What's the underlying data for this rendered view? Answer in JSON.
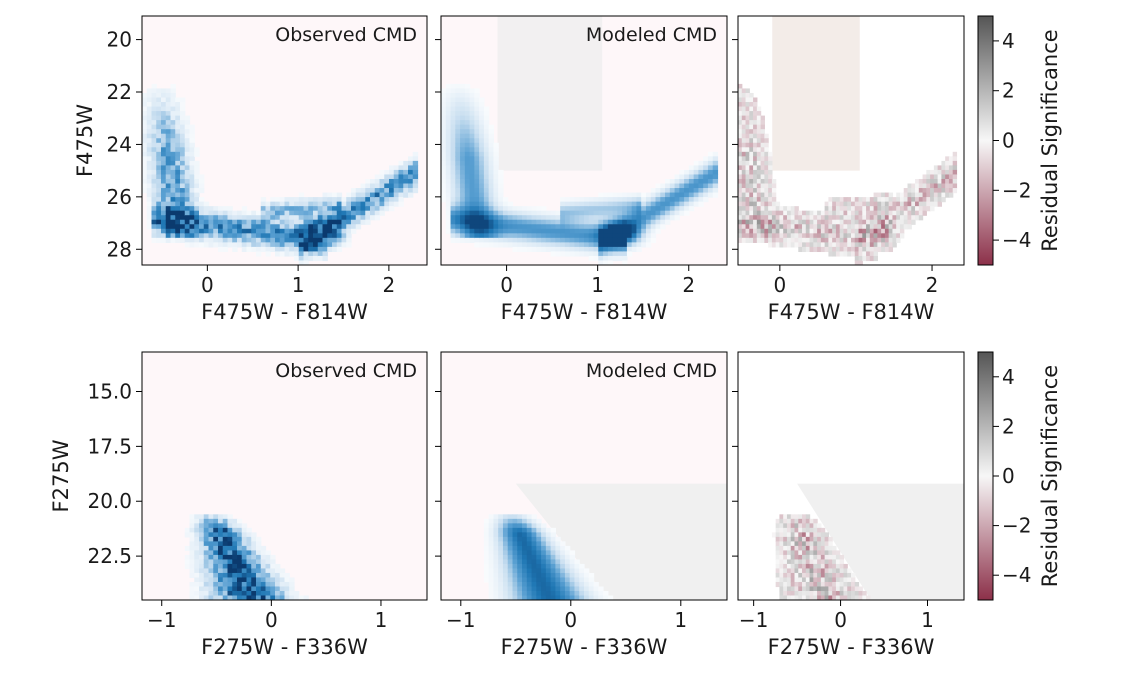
{
  "chart_data": [
    {
      "type": "heatmap",
      "row": "top",
      "panels": [
        {
          "title": "Observed CMD",
          "kind": "observed",
          "xlabel": "F475W - F814W",
          "xlim": [
            -0.72,
            2.42
          ],
          "xticks": [
            0,
            1,
            2
          ],
          "show_y": true
        },
        {
          "title": "Modeled CMD",
          "kind": "model",
          "xlabel": "F475W - F814W",
          "xlim": [
            -0.72,
            2.42
          ],
          "xticks": [
            0,
            1,
            2
          ],
          "show_y": false
        },
        {
          "title": "",
          "kind": "residual",
          "xlabel": "F475W - F814W",
          "xlim": [
            -0.55,
            2.42
          ],
          "xticks": [
            0,
            2
          ],
          "show_y": false
        }
      ],
      "ylabel": "F475W",
      "ylim": [
        28.6,
        19.1
      ],
      "yticks": [
        20,
        22,
        24,
        26,
        28
      ],
      "colorbar": {
        "label": "Residual Significance",
        "range": [
          -5,
          5
        ],
        "ticks": [
          4,
          2,
          0,
          -2,
          -4
        ],
        "colors": [
          "#8c3049",
          "#f7f7f7",
          "#555555"
        ]
      },
      "colors": {
        "density": "#1f77b4",
        "density_dark": "#0b3a6e",
        "background_tint": "#fbe9ef",
        "mask": "#ececec"
      }
    },
    {
      "type": "heatmap",
      "row": "bottom",
      "panels": [
        {
          "title": "Observed CMD",
          "kind": "observed",
          "xlabel": "F275W - F336W",
          "xlim": [
            -1.18,
            1.42
          ],
          "xticks": [
            -1,
            0,
            1
          ],
          "show_y": true
        },
        {
          "title": "Modeled CMD",
          "kind": "model",
          "xlabel": "F275W - F336W",
          "xlim": [
            -1.18,
            1.42
          ],
          "xticks": [
            -1,
            0,
            1
          ],
          "show_y": false
        },
        {
          "title": "",
          "kind": "residual",
          "xlabel": "F275W - F336W",
          "xlim": [
            -1.18,
            1.42
          ],
          "xticks": [
            -1,
            0,
            1
          ],
          "show_y": false
        }
      ],
      "ylabel": "F275W",
      "ylim": [
        24.5,
        13.2
      ],
      "yticks": [
        15.0,
        17.5,
        20.0,
        22.5
      ],
      "ytick_labels": [
        "15.0",
        "17.5",
        "20.0",
        "22.5"
      ],
      "colorbar": {
        "label": "Residual Significance",
        "range": [
          -5,
          5
        ],
        "ticks": [
          4,
          2,
          0,
          -2,
          -4
        ],
        "colors": [
          "#8c3049",
          "#f7f7f7",
          "#555555"
        ]
      },
      "colors": {
        "density": "#1f77b4",
        "density_dark": "#0b3a6e",
        "background_tint": "#fbe9ef",
        "mask": "#ececec"
      }
    }
  ]
}
